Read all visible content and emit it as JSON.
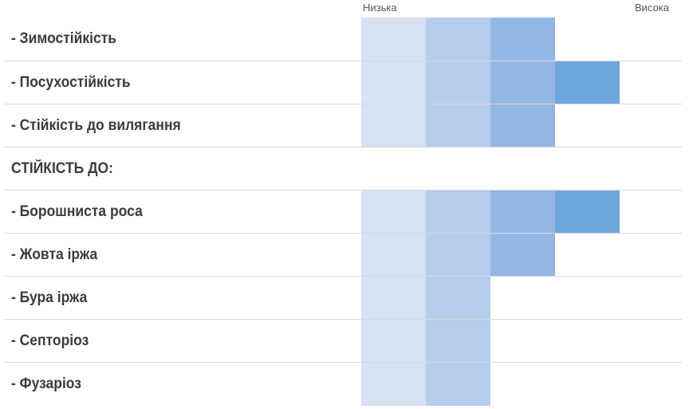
{
  "chart_data": {
    "type": "table",
    "scale": {
      "low_label": "Низька",
      "high_label": "Висока",
      "max_level": 4,
      "colors": [
        "#d6e1f2",
        "#b5cdec",
        "#93b7e3",
        "#6ea6dc"
      ]
    },
    "rows": [
      {
        "label": "- Зимостійкість",
        "level": 3,
        "line": false
      },
      {
        "label": "- Посухостійкість",
        "level": 4,
        "line": true
      },
      {
        "label": "- Стійкість до вилягання",
        "level": 3,
        "line": true
      },
      {
        "label": "СТІЙКІСТЬ ДО:",
        "level": null,
        "line": true
      },
      {
        "label": "- Борошниста роса",
        "level": 4,
        "line": true
      },
      {
        "label": "- Жовта іржа",
        "level": 3,
        "line": true
      },
      {
        "label": "- Бура іржа",
        "level": 2,
        "line": true
      },
      {
        "label": "- Септоріоз",
        "level": 2,
        "line": true
      },
      {
        "label": "- Фузаріоз",
        "level": 2,
        "line": true
      }
    ]
  }
}
